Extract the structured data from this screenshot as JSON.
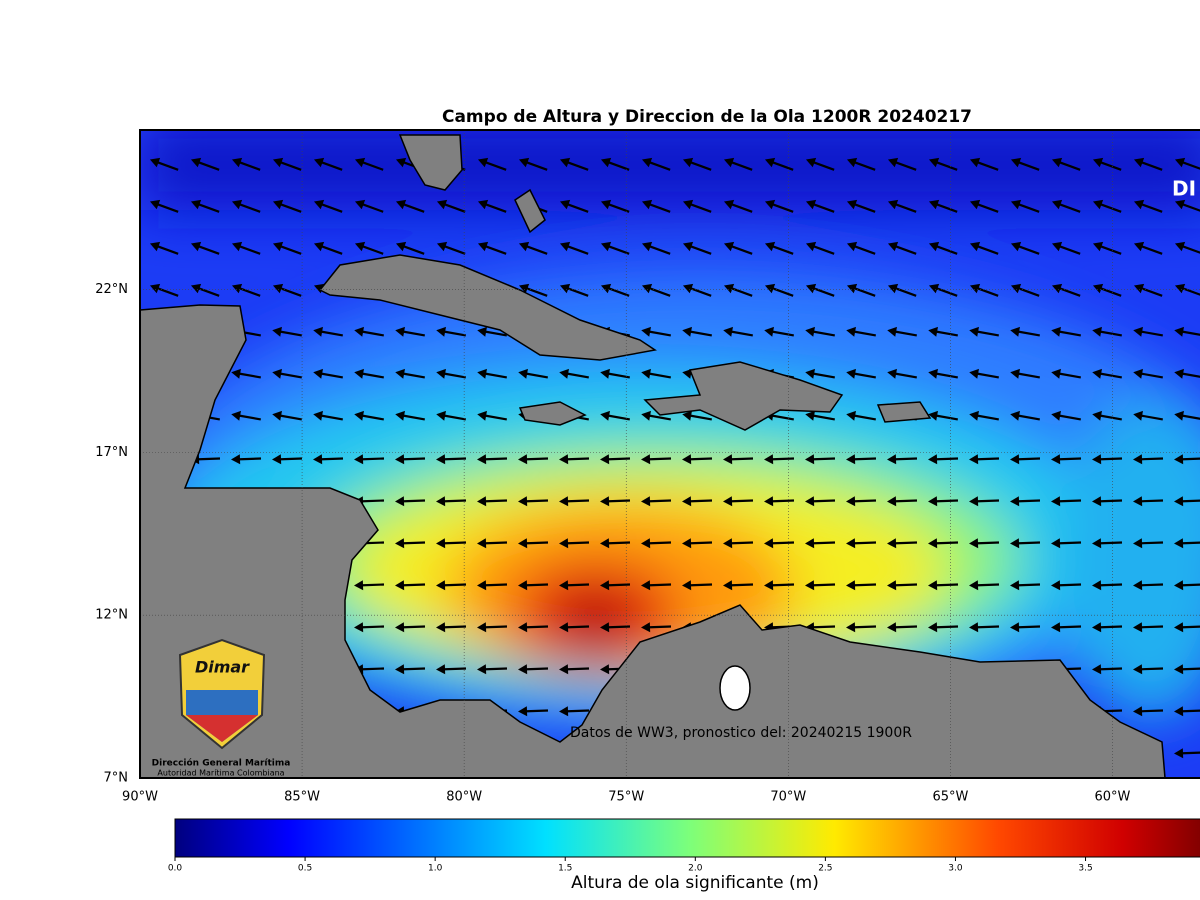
{
  "title": "Campo de Altura y Direccion de la Ola 1200R 20240217",
  "map": {
    "xlim": [
      -90,
      -57.3
    ],
    "ylim": [
      7,
      26.9
    ],
    "grid": true,
    "xticks": [
      {
        "value": -90,
        "label": "90°W"
      },
      {
        "value": -85,
        "label": "85°W"
      },
      {
        "value": -80,
        "label": "80°W"
      },
      {
        "value": -75,
        "label": "75°W"
      },
      {
        "value": -70,
        "label": "70°W"
      },
      {
        "value": -65,
        "label": "65°W"
      },
      {
        "value": -60,
        "label": "60°W"
      }
    ],
    "yticks": [
      {
        "value": 7,
        "label": "7°N"
      },
      {
        "value": 12,
        "label": "12°N"
      },
      {
        "value": 17,
        "label": "17°N"
      },
      {
        "value": 22,
        "label": "22°N"
      }
    ]
  },
  "colorbar": {
    "label": "Altura de ola significante (m)",
    "lim": [
      0,
      3.94
    ],
    "colormap": "jet",
    "ticks": [
      {
        "value": 0,
        "label": "0.0"
      },
      {
        "value": 0.5,
        "label": "0.5"
      },
      {
        "value": 1,
        "label": "1.0"
      },
      {
        "value": 1.5,
        "label": "1.5"
      },
      {
        "value": 2,
        "label": "2.0"
      },
      {
        "value": 2.5,
        "label": "2.5"
      },
      {
        "value": 3,
        "label": "3.0"
      },
      {
        "value": 3.5,
        "label": "3.5"
      }
    ]
  },
  "source_note": "Datos de WW3, pronostico del: 20240215 1900R",
  "corner_text": "DI",
  "logo": {
    "brand": "Dimar",
    "name": "Dirección General Marítima",
    "subtitle": "Autoridad Marítima Colombiana"
  }
}
